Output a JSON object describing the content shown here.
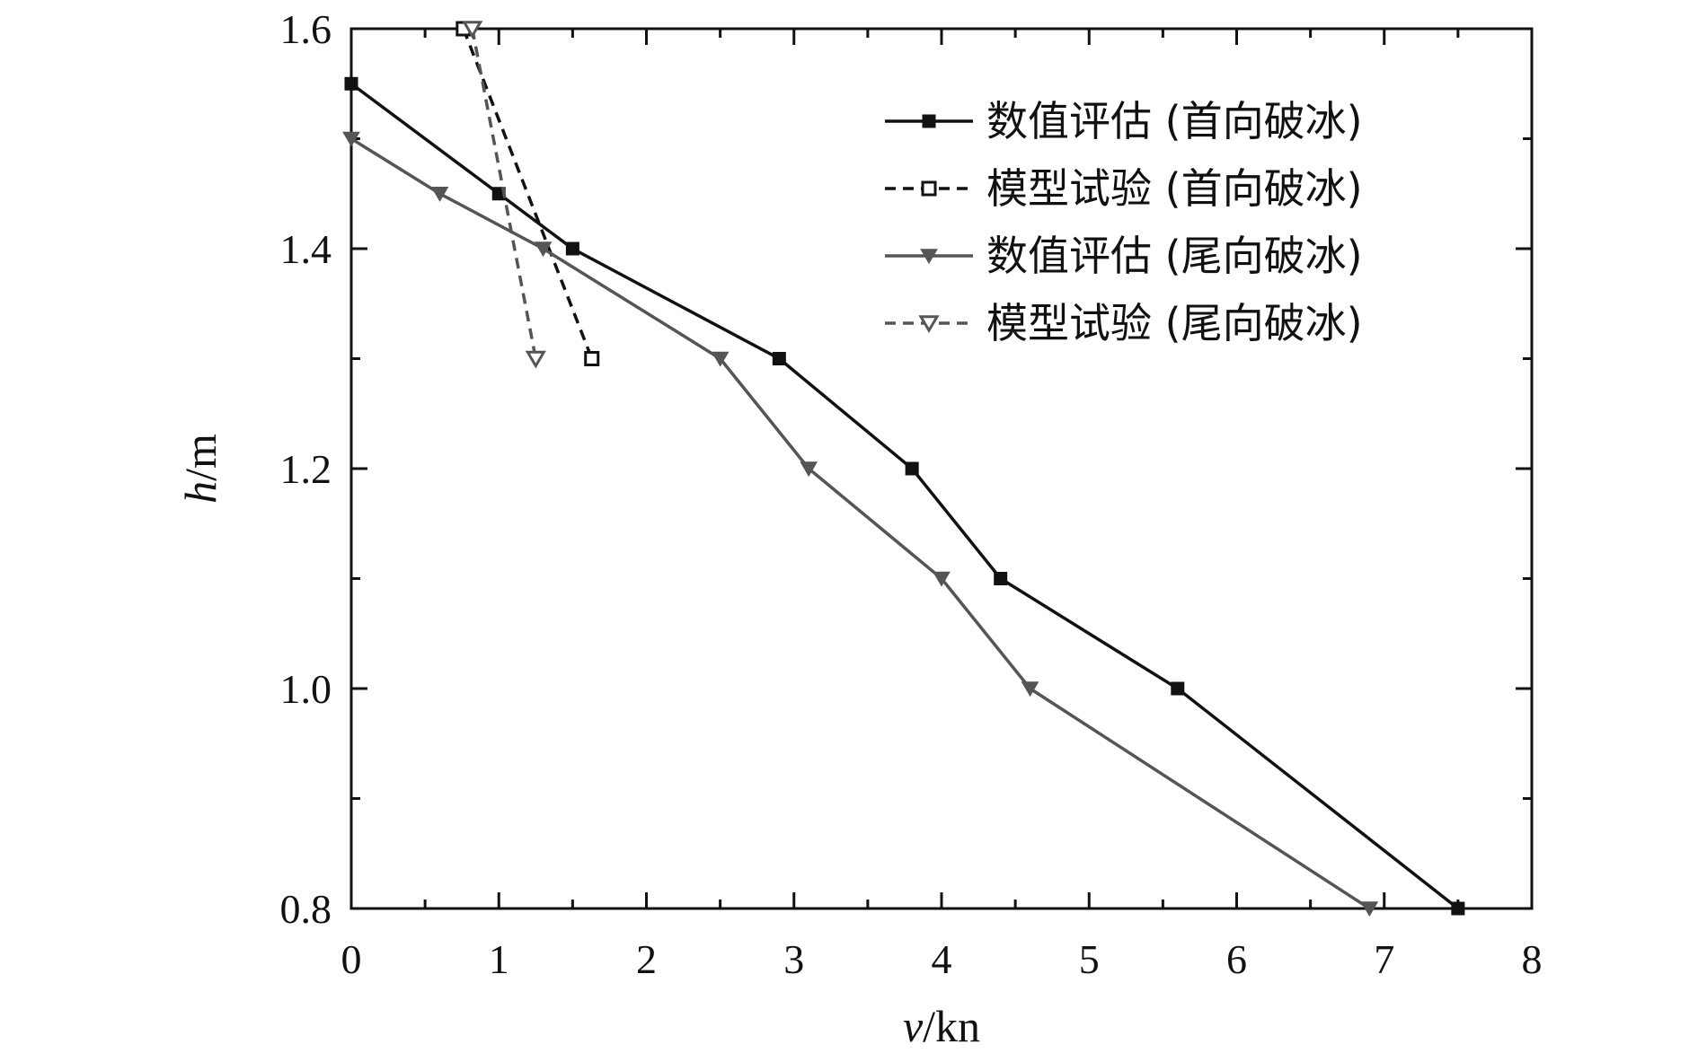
{
  "chart_data": {
    "type": "line",
    "xlabel": {
      "var": "v",
      "unit": "/kn"
    },
    "ylabel": {
      "var": "h",
      "unit": "/m"
    },
    "xlim": [
      0,
      8
    ],
    "ylim": [
      0.8,
      1.6
    ],
    "x_ticks": [
      0,
      1,
      2,
      3,
      4,
      5,
      6,
      7,
      8
    ],
    "x_tick_labels": [
      "0",
      "1",
      "2",
      "3",
      "4",
      "5",
      "6",
      "7",
      "8"
    ],
    "y_ticks": [
      0.8,
      1.0,
      1.2,
      1.4,
      1.6
    ],
    "y_tick_labels": [
      "0.8",
      "1.0",
      "1.2",
      "1.4",
      "1.6"
    ],
    "x_minor_step": 0.5,
    "y_minor_step": 0.1,
    "grid": false,
    "legend_position": "top-right",
    "series": [
      {
        "name": "数值评估 (首向破冰)",
        "color": "#111111",
        "line": "solid",
        "marker": "square-filled",
        "x": [
          0,
          1.0,
          1.5,
          2.9,
          3.8,
          4.4,
          5.6,
          7.5
        ],
        "y": [
          1.55,
          1.45,
          1.4,
          1.3,
          1.2,
          1.1,
          1.0,
          0.8
        ]
      },
      {
        "name": "模型试验 (首向破冰)",
        "color": "#111111",
        "line": "dashed",
        "marker": "square-open",
        "x": [
          0.76,
          1.63
        ],
        "y": [
          1.6,
          1.3
        ]
      },
      {
        "name": "数值评估 (尾向破冰)",
        "color": "#555555",
        "line": "solid",
        "marker": "triangle-down-filled",
        "x": [
          0,
          0.6,
          1.3,
          2.5,
          3.1,
          4.0,
          4.6,
          6.9
        ],
        "y": [
          1.5,
          1.45,
          1.4,
          1.3,
          1.2,
          1.1,
          1.0,
          0.8
        ]
      },
      {
        "name": "模型试验 (尾向破冰)",
        "color": "#555555",
        "line": "dashed",
        "marker": "triangle-down-open",
        "x": [
          0.82,
          1.25
        ],
        "y": [
          1.6,
          1.3
        ]
      }
    ]
  }
}
